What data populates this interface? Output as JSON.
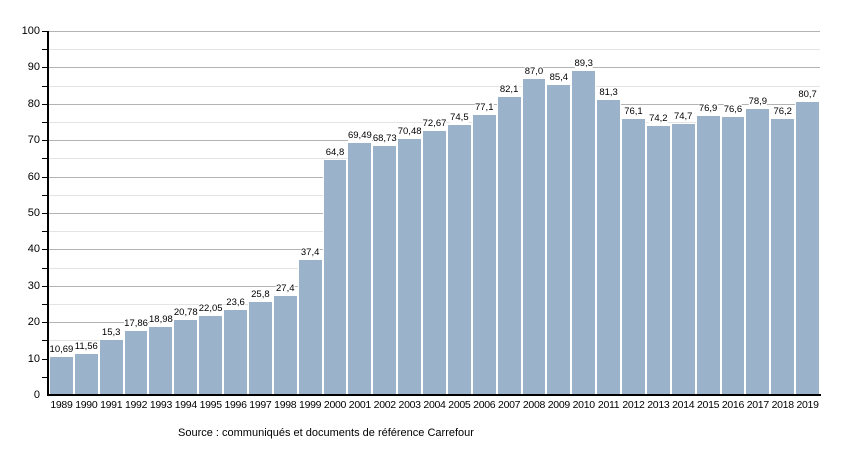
{
  "chart_data": {
    "type": "bar",
    "title": "",
    "xlabel": "",
    "ylabel": "",
    "categories": [
      "1989",
      "1990",
      "1991",
      "1992",
      "1993",
      "1994",
      "1995",
      "1996",
      "1997",
      "1998",
      "1999",
      "2000",
      "2001",
      "2002",
      "2003",
      "2004",
      "2005",
      "2006",
      "2007",
      "2008",
      "2009",
      "2010",
      "2011",
      "2012",
      "2013",
      "2014",
      "2015",
      "2016",
      "2017",
      "2018",
      "2019"
    ],
    "values": [
      10.69,
      11.56,
      15.3,
      17.86,
      18.98,
      20.78,
      22.05,
      23.6,
      25.8,
      27.4,
      37.4,
      64.8,
      69.49,
      68.73,
      70.48,
      72.67,
      74.5,
      77.1,
      82.1,
      87.0,
      85.4,
      89.3,
      81.3,
      76.1,
      74.2,
      74.7,
      76.9,
      76.6,
      78.9,
      76.2,
      80.7
    ],
    "value_labels": [
      "10,69",
      "11,56",
      "15,3",
      "17,86",
      "18,98",
      "20,78",
      "22,05",
      "23,6",
      "25,8",
      "27,4",
      "37,4",
      "64,8",
      "69,49",
      "68,73",
      "70,48",
      "72,67",
      "74,5",
      "77,1",
      "82,1",
      "87,0",
      "85,4",
      "89,3",
      "81,3",
      "76,1",
      "74,2",
      "74,7",
      "76,9",
      "76,6",
      "78,9",
      "76,2",
      "80,7"
    ],
    "ylim": [
      0,
      100
    ],
    "y_major_step": 10,
    "y_minor_step": 5,
    "y_tick_labels": [
      "0",
      "10",
      "20",
      "30",
      "40",
      "50",
      "60",
      "70",
      "80",
      "90",
      "100"
    ],
    "grid": true,
    "legend": false,
    "bar_color": "#9ab2ca",
    "bar_edge_color": "#ffffff",
    "major_grid_color": "#b3b3b3",
    "minor_grid_color": "#e4e4e4",
    "axis_color": "#000000",
    "source": "Source : communiqués et documents de référence Carrefour"
  }
}
